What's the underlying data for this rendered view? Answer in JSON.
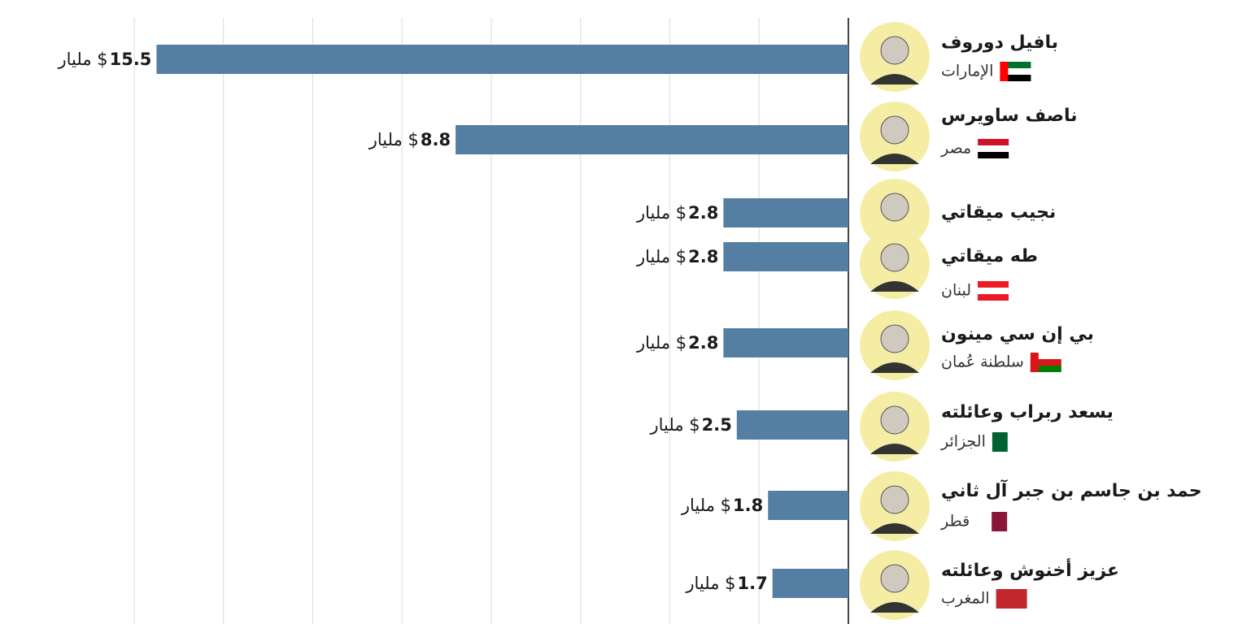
{
  "chart_data": {
    "type": "hbar",
    "categories": [
      "بافيل دوروف",
      "ناصف ساويرس",
      "نجيب ميقاتي",
      "طه ميقاتي",
      "بي إن سي مينون",
      "يسعد ربراب وعائلته",
      "حمد بن جاسم بن جبر آل ثاني",
      "عزيز أخنوش وعائلته"
    ],
    "countries": [
      "الإمارات",
      "مصر",
      null,
      "لبنان",
      "سلطنة عُمان",
      "الجزائر",
      "قطر",
      "المغرب"
    ],
    "values": [
      15.5,
      8.8,
      2.8,
      2.8,
      2.8,
      2.5,
      1.8,
      1.7
    ],
    "value_unit": "مليار $",
    "color": "#557fa2",
    "xlim": [
      0,
      16
    ],
    "xticks": [
      0,
      2,
      4,
      6,
      8,
      10,
      12,
      14,
      16
    ],
    "grid": true
  }
}
